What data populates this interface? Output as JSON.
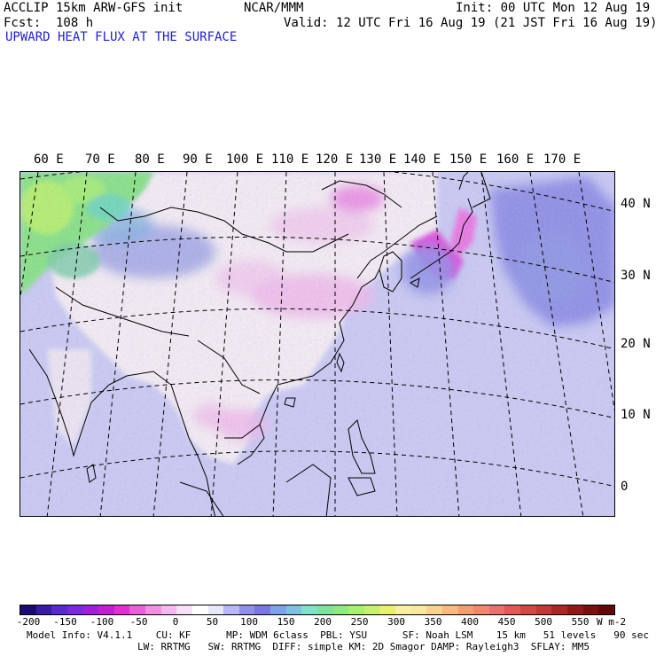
{
  "header": {
    "model": "ACCLIP 15km ARW-GFS init",
    "center": "NCAR/MMM",
    "init": "Init: 00 UTC Mon 12 Aug 19",
    "fcst": "Fcst:  108 h",
    "valid": "Valid: 12 UTC Fri 16 Aug 19 (21 JST Fri 16 Aug 19)",
    "field_title": "UPWARD HEAT FLUX AT THE SURFACE"
  },
  "map": {
    "lon_labels": [
      "60 E",
      "70 E",
      "80 E",
      "90 E",
      "100 E",
      "110 E",
      "120 E",
      "130 E",
      "140 E",
      "150 E",
      "160 E",
      "170 E"
    ],
    "lat_labels": [
      "40 N",
      "30 N",
      "20 N",
      "10 N",
      "0"
    ],
    "colors": {
      "ocean_base": "#c9c9f6",
      "land_light": "#f4ecf6",
      "pink": "#f0a8ec",
      "magenta": "#e060e0",
      "blue": "#8f90e8",
      "green": "#88e088",
      "yellow_green": "#b8f070"
    }
  },
  "colorbar": {
    "tick_labels": [
      "-200",
      "-150",
      "-100",
      "-50",
      "0",
      "50",
      "100",
      "150",
      "200",
      "250",
      "300",
      "350",
      "400",
      "450",
      "500",
      "550"
    ],
    "units": "W m-2",
    "colors": [
      "#1a0a70",
      "#3a1aa0",
      "#5a2ac8",
      "#7a2ad8",
      "#a020d8",
      "#c020d0",
      "#e030d0",
      "#e860d8",
      "#f090e0",
      "#f4b8ee",
      "#f8e0f8",
      "#ffffff",
      "#e8e8fa",
      "#b8b8f4",
      "#9090ea",
      "#7878e0",
      "#80a0e8",
      "#80c0e0",
      "#80e0c8",
      "#80e0a0",
      "#90e880",
      "#a8f070",
      "#c8f070",
      "#e8f070",
      "#f8f0a0",
      "#f8e8a0",
      "#f8d090",
      "#f8b880",
      "#f0a070",
      "#f08870",
      "#e87070",
      "#e05858",
      "#d04848",
      "#c03838",
      "#a82828",
      "#901818",
      "#781010",
      "#600808"
    ]
  },
  "footer": {
    "line1": "Model Info: V4.1.1    CU: KF      MP: WDM 6class  PBL: YSU      SF: Noah LSM    15 km   51 levels   90 sec",
    "line2": "LW: RRTMG   SW: RRTMG  DIFF: simple KM: 2D Smagor DAMP: Rayleigh3  SFLAY: MM5"
  }
}
